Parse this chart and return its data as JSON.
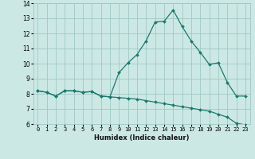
{
  "xlabel": "Humidex (Indice chaleur)",
  "background_color": "#cce8e4",
  "grid_color": "#a0c8c4",
  "line_color": "#1a7a6e",
  "ylim": [
    6,
    14
  ],
  "xlim": [
    -0.5,
    23.5
  ],
  "yticks": [
    6,
    7,
    8,
    9,
    10,
    11,
    12,
    13,
    14
  ],
  "xticks": [
    0,
    1,
    2,
    3,
    4,
    5,
    6,
    7,
    8,
    9,
    10,
    11,
    12,
    13,
    14,
    15,
    16,
    17,
    18,
    19,
    20,
    21,
    22,
    23
  ],
  "line1_x": [
    0,
    1,
    2,
    3,
    4,
    5,
    6,
    7,
    8,
    9,
    10,
    11,
    12,
    13,
    14,
    15,
    16,
    17,
    18,
    19,
    20,
    21,
    22,
    23
  ],
  "line1_y": [
    8.2,
    8.1,
    7.85,
    8.2,
    8.2,
    8.1,
    8.15,
    7.85,
    7.8,
    9.4,
    10.05,
    10.6,
    11.5,
    12.75,
    12.8,
    13.55,
    12.45,
    11.5,
    10.75,
    9.95,
    10.05,
    8.75,
    7.85,
    7.85
  ],
  "line2_x": [
    0,
    1,
    2,
    3,
    4,
    5,
    6,
    7,
    8,
    9,
    10,
    11,
    12,
    13,
    14,
    15,
    16,
    17,
    18,
    19,
    20,
    21,
    22,
    23
  ],
  "line2_y": [
    8.2,
    8.1,
    7.85,
    8.2,
    8.2,
    8.1,
    8.15,
    7.85,
    7.8,
    7.75,
    7.7,
    7.65,
    7.55,
    7.45,
    7.35,
    7.25,
    7.15,
    7.05,
    6.95,
    6.85,
    6.65,
    6.45,
    6.05,
    5.95
  ]
}
